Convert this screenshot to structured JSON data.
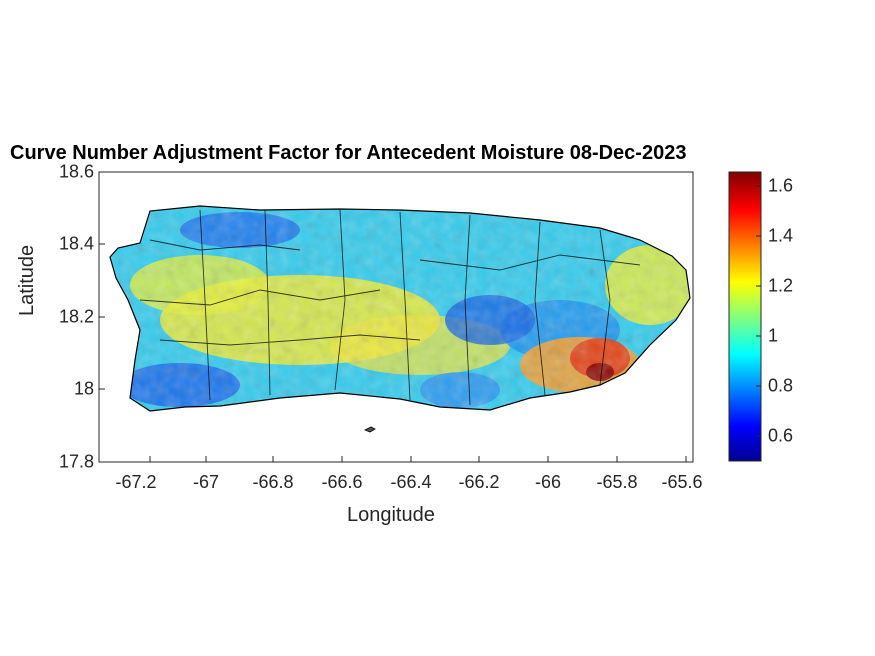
{
  "chart_data": {
    "type": "heatmap",
    "title": "Curve Number Adjustment Factor for Antecedent Moisture 08-Dec-2023",
    "xlabel": "Longitude",
    "ylabel": "Latitude",
    "xlim": [
      -67.3,
      -65.58
    ],
    "ylim": [
      17.8,
      18.6
    ],
    "xticks": [
      "-67.2",
      "-67",
      "-66.8",
      "-66.6",
      "-66.4",
      "-66.2",
      "-66",
      "-65.8",
      "-65.6"
    ],
    "yticks": [
      "18.6",
      "18.4",
      "18.2",
      "18",
      "17.8"
    ],
    "colorbar": {
      "colormap": "jet",
      "range": [
        0.5,
        1.66
      ],
      "ticks": [
        "1.6",
        "1.4",
        "1.2",
        "1",
        "0.8",
        "0.6"
      ]
    },
    "regions": [
      {
        "name": "",
        "value": 0.62
      },
      {
        "name": "",
        "value": 1.55
      }
    ]
  }
}
